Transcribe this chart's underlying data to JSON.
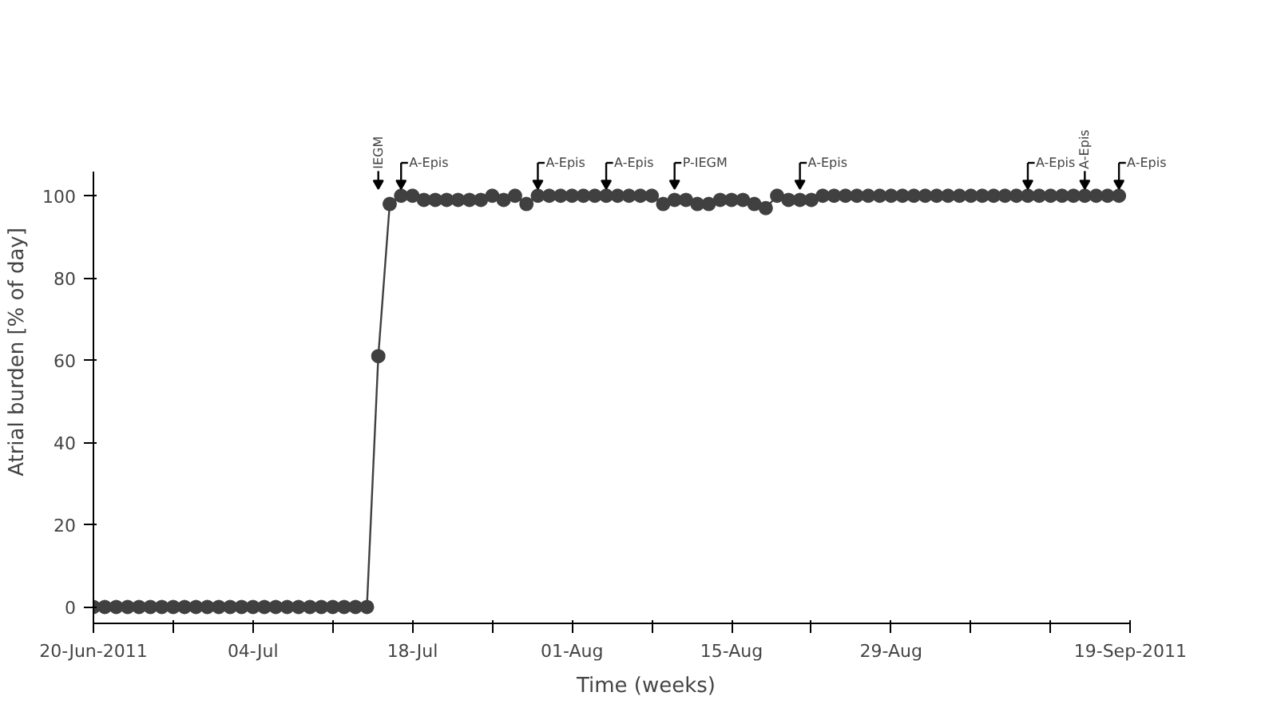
{
  "chart_data": {
    "type": "line",
    "xlabel": "Time (weeks)",
    "ylabel": "Atrial burden [% of day]",
    "x": [
      "2011-06-20",
      "2011-06-21",
      "2011-06-22",
      "2011-06-23",
      "2011-06-24",
      "2011-06-25",
      "2011-06-26",
      "2011-06-27",
      "2011-06-28",
      "2011-06-29",
      "2011-06-30",
      "2011-07-01",
      "2011-07-02",
      "2011-07-03",
      "2011-07-04",
      "2011-07-05",
      "2011-07-06",
      "2011-07-07",
      "2011-07-08",
      "2011-07-09",
      "2011-07-10",
      "2011-07-11",
      "2011-07-12",
      "2011-07-13",
      "2011-07-14",
      "2011-07-15",
      "2011-07-16",
      "2011-07-17",
      "2011-07-18",
      "2011-07-19",
      "2011-07-20",
      "2011-07-21",
      "2011-07-22",
      "2011-07-23",
      "2011-07-24",
      "2011-07-25",
      "2011-07-26",
      "2011-07-27",
      "2011-07-28",
      "2011-07-29",
      "2011-07-30",
      "2011-07-31",
      "2011-08-01",
      "2011-08-02",
      "2011-08-03",
      "2011-08-04",
      "2011-08-05",
      "2011-08-06",
      "2011-08-07",
      "2011-08-08",
      "2011-08-09",
      "2011-08-10",
      "2011-08-11",
      "2011-08-12",
      "2011-08-13",
      "2011-08-14",
      "2011-08-15",
      "2011-08-16",
      "2011-08-17",
      "2011-08-18",
      "2011-08-19",
      "2011-08-20",
      "2011-08-21",
      "2011-08-22",
      "2011-08-23",
      "2011-08-24",
      "2011-08-25",
      "2011-08-26",
      "2011-08-27",
      "2011-08-28",
      "2011-08-29",
      "2011-08-30",
      "2011-08-31",
      "2011-09-01",
      "2011-09-02",
      "2011-09-03",
      "2011-09-04",
      "2011-09-05",
      "2011-09-06",
      "2011-09-07",
      "2011-09-08",
      "2011-09-09",
      "2011-09-10",
      "2011-09-11",
      "2011-09-12",
      "2011-09-13",
      "2011-09-14",
      "2011-09-15",
      "2011-09-16",
      "2011-09-17",
      "2011-09-18"
    ],
    "series": [
      {
        "color": "#404040",
        "values": [
          0,
          0,
          0,
          0,
          0,
          0,
          0,
          0,
          0,
          0,
          0,
          0,
          0,
          0,
          0,
          0,
          0,
          0,
          0,
          0,
          0,
          0,
          0,
          0,
          0,
          61,
          98,
          100,
          100,
          99,
          99,
          99,
          99,
          99,
          99,
          100,
          99,
          100,
          98,
          100,
          100,
          100,
          100,
          100,
          100,
          100,
          100,
          100,
          100,
          100,
          98,
          99,
          99,
          98,
          98,
          99,
          99,
          99,
          98,
          97,
          100,
          99,
          99,
          99,
          100,
          100,
          100,
          100,
          100,
          100,
          100,
          100,
          100,
          100,
          100,
          100,
          100,
          100,
          100,
          100,
          100,
          100,
          100,
          100,
          100,
          100,
          100,
          100,
          100,
          100,
          100
        ]
      }
    ],
    "xlim": [
      "2011-06-20",
      "2011-09-19"
    ],
    "xticks": [
      {
        "value": "2011-06-20",
        "label": "20-Jun-2011"
      },
      {
        "value": "2011-06-27",
        "label": null
      },
      {
        "value": "2011-07-04",
        "label": "04-Jul"
      },
      {
        "value": "2011-07-11",
        "label": null
      },
      {
        "value": "2011-07-18",
        "label": "18-Jul"
      },
      {
        "value": "2011-07-25",
        "label": null
      },
      {
        "value": "2011-08-01",
        "label": "01-Aug"
      },
      {
        "value": "2011-08-08",
        "label": null
      },
      {
        "value": "2011-08-15",
        "label": "15-Aug"
      },
      {
        "value": "2011-08-22",
        "label": null
      },
      {
        "value": "2011-08-29",
        "label": "29-Aug"
      },
      {
        "value": "2011-09-05",
        "label": null
      },
      {
        "value": "2011-09-12",
        "label": null
      },
      {
        "value": "2011-09-19",
        "label": "19-Sep-2011"
      }
    ],
    "ylim": [
      -4,
      106
    ],
    "yticks": [
      0,
      20,
      40,
      60,
      80,
      100
    ],
    "grid": false,
    "marker": "circle",
    "line_style": "solid",
    "annotations": [
      {
        "text": "IEGM",
        "x": "2011-07-15",
        "y": 100
      },
      {
        "text": "A-Epis",
        "x": "2011-07-17",
        "y": 100
      },
      {
        "text": "A-Epis",
        "x": "2011-07-29",
        "y": 100
      },
      {
        "text": "A-Epis",
        "x": "2011-08-04",
        "y": 100
      },
      {
        "text": "P-IEGM",
        "x": "2011-08-10",
        "y": 100
      },
      {
        "text": "A-Epis",
        "x": "2011-08-21",
        "y": 100
      },
      {
        "text": "A-Epis",
        "x": "2011-09-10",
        "y": 100
      },
      {
        "text": "A-Epis",
        "x": "2011-09-15",
        "y": 100
      },
      {
        "text": "A-Epis",
        "x": "2011-09-18",
        "y": 100
      }
    ]
  }
}
